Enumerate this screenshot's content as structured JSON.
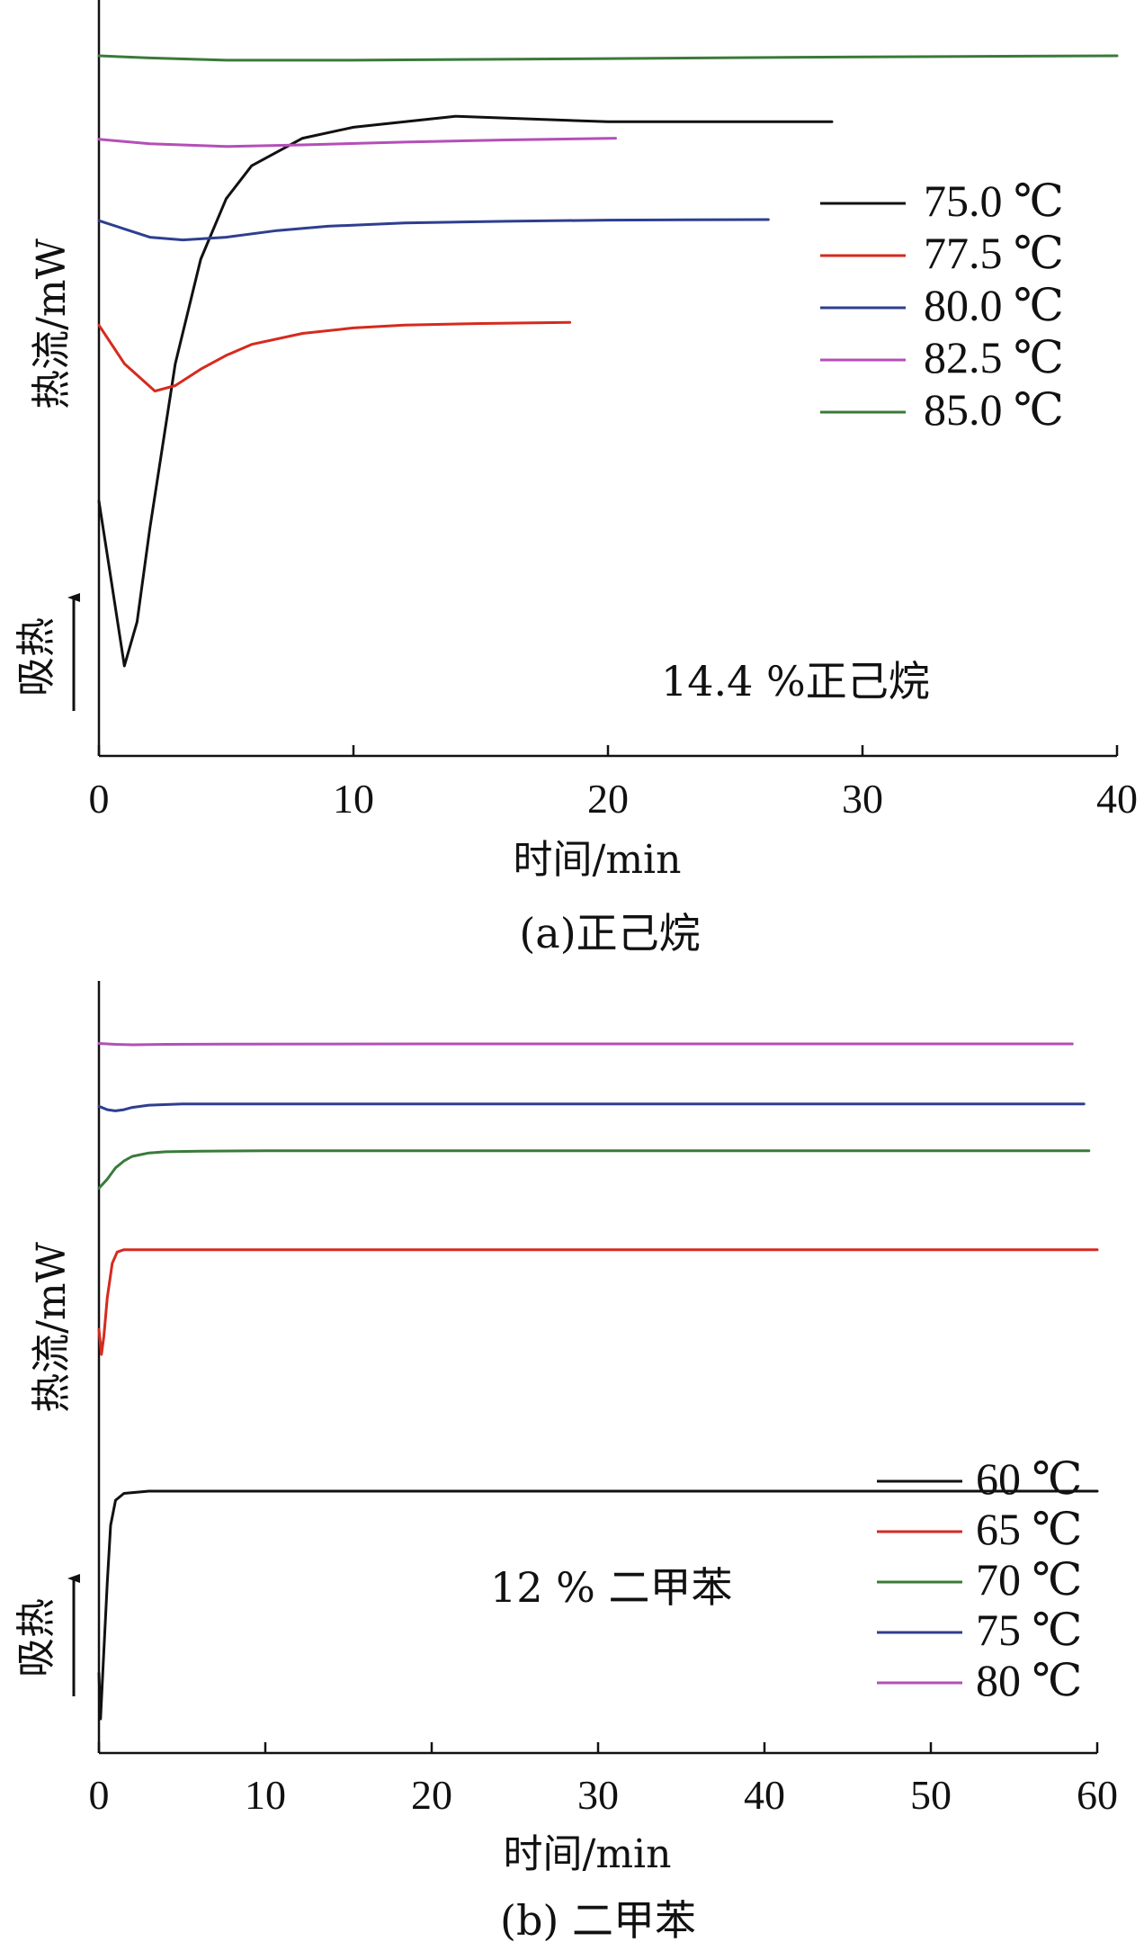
{
  "chart_data": [
    {
      "type": "line",
      "caption": "(a)正己烷",
      "xlabel": "时间/min",
      "ylabel": "热流/mW",
      "endo_label": "吸热",
      "annotation": "14.4 %正己烷",
      "xlim": [
        0,
        40
      ],
      "xticks": [
        0,
        10,
        20,
        30,
        40
      ],
      "yticks_shown": false,
      "legend_position": "right",
      "series": [
        {
          "name": "75.0 ℃",
          "color": "#111111",
          "x": [
            0,
            0.5,
            1.0,
            1.5,
            2,
            3,
            4,
            5,
            6,
            8,
            10,
            14,
            20,
            28.8
          ],
          "y": [
            0.3,
            0.15,
            0.0,
            0.08,
            0.25,
            0.55,
            0.74,
            0.85,
            0.91,
            0.96,
            0.98,
            1.0,
            0.99,
            0.99
          ]
        },
        {
          "name": "77.5 ℃",
          "color": "#d62a1e",
          "x": [
            0,
            1,
            2.2,
            3,
            4,
            5,
            6,
            8,
            10,
            12,
            15,
            18.5
          ],
          "y": [
            0.62,
            0.55,
            0.5,
            0.51,
            0.54,
            0.565,
            0.585,
            0.605,
            0.615,
            0.62,
            0.623,
            0.625
          ]
        },
        {
          "name": "80.0 ℃",
          "color": "#2e3f8f",
          "x": [
            0,
            1,
            2,
            3.3,
            5,
            7,
            9,
            12,
            16,
            20,
            26.3
          ],
          "y": [
            0.81,
            0.795,
            0.78,
            0.775,
            0.78,
            0.792,
            0.8,
            0.806,
            0.809,
            0.811,
            0.812
          ]
        },
        {
          "name": "82.5 ℃",
          "color": "#b44fb8",
          "x": [
            0,
            2,
            5,
            8,
            12,
            16,
            20.3
          ],
          "y": [
            0.958,
            0.95,
            0.945,
            0.948,
            0.953,
            0.957,
            0.96
          ]
        },
        {
          "name": "85.0 ℃",
          "color": "#3a7a3a",
          "x": [
            0,
            2,
            5,
            10,
            20,
            30,
            40
          ],
          "y": [
            1.11,
            1.106,
            1.102,
            1.102,
            1.105,
            1.108,
            1.11
          ]
        }
      ]
    },
    {
      "type": "line",
      "caption": "(b) 二甲苯",
      "xlabel": "时间/min",
      "ylabel": "热流/mW",
      "endo_label": "吸热",
      "annotation": "12 % 二甲苯",
      "xlim": [
        0,
        60
      ],
      "xticks": [
        0,
        10,
        20,
        30,
        40,
        50,
        60
      ],
      "yticks_shown": false,
      "legend_position": "bottom-right",
      "series": [
        {
          "name": "60 ℃",
          "color": "#111111",
          "x": [
            0,
            0.1,
            0.3,
            0.5,
            0.7,
            1.0,
            1.5,
            3,
            10,
            30,
            60
          ],
          "y": [
            0.2,
            0.0,
            0.3,
            0.6,
            0.85,
            0.96,
            0.99,
            1.0,
            1.0,
            1.0,
            1.0
          ]
        },
        {
          "name": "65 ℃",
          "color": "#d62a1e",
          "x": [
            0,
            0.15,
            0.3,
            0.5,
            0.8,
            1.1,
            1.5,
            3,
            10,
            30,
            60
          ],
          "y": [
            1.71,
            1.6,
            1.68,
            1.85,
            2.0,
            2.05,
            2.06,
            2.06,
            2.06,
            2.06,
            2.06
          ]
        },
        {
          "name": "70 ℃",
          "color": "#3a7a3a",
          "x": [
            0,
            0.5,
            1,
            1.5,
            2,
            3,
            4,
            6,
            10,
            30,
            59.5
          ],
          "y": [
            2.33,
            2.37,
            2.42,
            2.45,
            2.47,
            2.485,
            2.49,
            2.493,
            2.495,
            2.495,
            2.495
          ]
        },
        {
          "name": "75 ℃",
          "color": "#2e3f8f",
          "x": [
            0,
            0.5,
            1,
            1.5,
            2,
            3,
            5,
            10,
            30,
            59.2
          ],
          "y": [
            2.69,
            2.675,
            2.67,
            2.675,
            2.685,
            2.695,
            2.7,
            2.7,
            2.7,
            2.7
          ]
        },
        {
          "name": "80 ℃",
          "color": "#b44fb8",
          "x": [
            0,
            1,
            2,
            4,
            8,
            20,
            40,
            58.5
          ],
          "y": [
            2.966,
            2.962,
            2.96,
            2.962,
            2.963,
            2.964,
            2.964,
            2.964
          ]
        }
      ]
    }
  ]
}
